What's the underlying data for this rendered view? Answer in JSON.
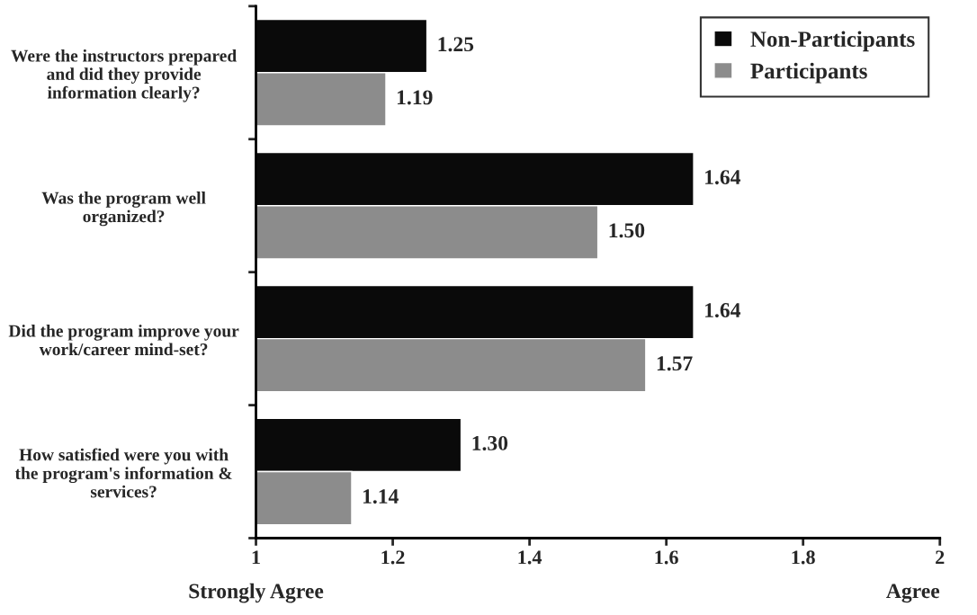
{
  "chart_data": {
    "type": "bar",
    "orientation": "horizontal",
    "categories": [
      "Were the instructors prepared\nand did they provide\ninformation clearly?",
      "Was the program well\norganized?",
      "Did the program improve your\nwork/career mind-set?",
      "How satisfied were you with\nthe program's information &\nservices?"
    ],
    "series": [
      {
        "name": "Non-Participants",
        "color": "#0a0a0a",
        "values": [
          1.25,
          1.64,
          1.64,
          1.3
        ],
        "value_labels": [
          "1.25",
          "1.64",
          "1.64",
          "1.30"
        ]
      },
      {
        "name": "Participants",
        "color": "#8c8c8c",
        "values": [
          1.19,
          1.5,
          1.57,
          1.14
        ],
        "value_labels": [
          "1.19",
          "1.50",
          "1.57",
          "1.14"
        ]
      }
    ],
    "xlim": [
      1,
      2
    ],
    "xticks": [
      1,
      1.2,
      1.4,
      1.6,
      1.8,
      2
    ],
    "legend": "top right",
    "grid": false,
    "annotations": [
      "Strongly Agree",
      "Agree"
    ]
  }
}
